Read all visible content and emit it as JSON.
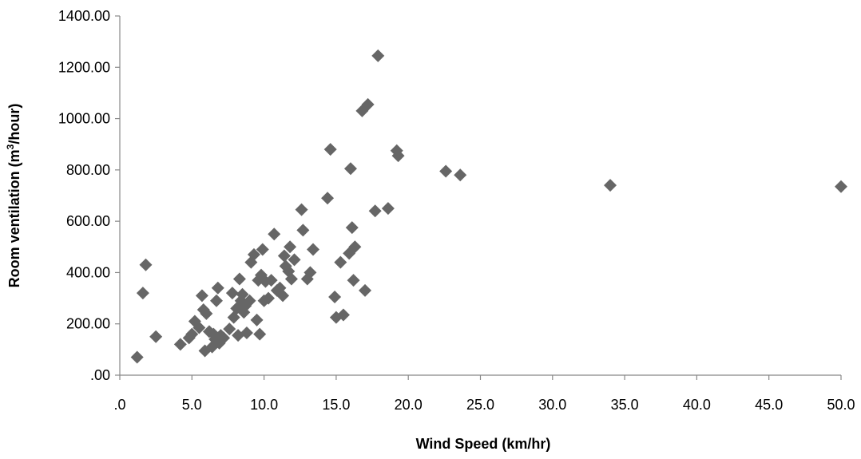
{
  "chart_data": {
    "type": "scatter",
    "title": "",
    "xlabel": "Wind Speed (km/hr)",
    "ylabel_parts": [
      "Room ventilation (m",
      "3",
      "/hour)"
    ],
    "xlim": [
      0,
      50
    ],
    "ylim": [
      0,
      1400
    ],
    "x_ticks": [
      {
        "value": 0,
        "label": ".0"
      },
      {
        "value": 5,
        "label": "5.0"
      },
      {
        "value": 10,
        "label": "10.0"
      },
      {
        "value": 15,
        "label": "15.0"
      },
      {
        "value": 20,
        "label": "20.0"
      },
      {
        "value": 25,
        "label": "25.0"
      },
      {
        "value": 30,
        "label": "30.0"
      },
      {
        "value": 35,
        "label": "35.0"
      },
      {
        "value": 40,
        "label": "40.0"
      },
      {
        "value": 45,
        "label": "45.0"
      },
      {
        "value": 50,
        "label": "50.0"
      }
    ],
    "y_ticks": [
      {
        "value": 0,
        "label": ".00"
      },
      {
        "value": 200,
        "label": "200.00"
      },
      {
        "value": 400,
        "label": "400.00"
      },
      {
        "value": 600,
        "label": "600.00"
      },
      {
        "value": 800,
        "label": "800.00"
      },
      {
        "value": 1000,
        "label": "1000.00"
      },
      {
        "value": 1200,
        "label": "1200.00"
      },
      {
        "value": 1400,
        "label": "1400.00"
      }
    ],
    "grid": false,
    "legend": "none",
    "marker": "diamond",
    "marker_color": "#666666",
    "axis_color": "#888888",
    "text_color": "#000000",
    "points": [
      [
        1.2,
        70
      ],
      [
        1.6,
        320
      ],
      [
        1.8,
        430
      ],
      [
        2.5,
        150
      ],
      [
        4.2,
        120
      ],
      [
        4.8,
        145
      ],
      [
        5.0,
        160
      ],
      [
        5.2,
        210
      ],
      [
        5.5,
        185
      ],
      [
        5.7,
        310
      ],
      [
        5.8,
        255
      ],
      [
        5.9,
        95
      ],
      [
        6.0,
        240
      ],
      [
        6.2,
        170
      ],
      [
        6.4,
        110
      ],
      [
        6.5,
        160
      ],
      [
        6.6,
        140
      ],
      [
        6.7,
        290
      ],
      [
        6.8,
        340
      ],
      [
        6.9,
        125
      ],
      [
        7.0,
        155
      ],
      [
        7.2,
        145
      ],
      [
        7.6,
        180
      ],
      [
        7.8,
        320
      ],
      [
        7.9,
        225
      ],
      [
        8.1,
        260
      ],
      [
        8.2,
        155
      ],
      [
        8.3,
        375
      ],
      [
        8.4,
        290
      ],
      [
        8.5,
        315
      ],
      [
        8.6,
        245
      ],
      [
        8.7,
        270
      ],
      [
        8.8,
        165
      ],
      [
        9.0,
        290
      ],
      [
        9.1,
        440
      ],
      [
        9.3,
        470
      ],
      [
        9.5,
        215
      ],
      [
        9.6,
        370
      ],
      [
        9.7,
        160
      ],
      [
        9.8,
        390
      ],
      [
        9.9,
        490
      ],
      [
        10.0,
        290
      ],
      [
        10.1,
        365
      ],
      [
        10.3,
        300
      ],
      [
        10.5,
        370
      ],
      [
        10.7,
        550
      ],
      [
        10.9,
        330
      ],
      [
        11.1,
        340
      ],
      [
        11.3,
        310
      ],
      [
        11.4,
        465
      ],
      [
        11.5,
        425
      ],
      [
        11.7,
        405
      ],
      [
        11.8,
        500
      ],
      [
        11.9,
        375
      ],
      [
        12.1,
        450
      ],
      [
        12.6,
        645
      ],
      [
        12.7,
        565
      ],
      [
        13.0,
        375
      ],
      [
        13.2,
        400
      ],
      [
        13.4,
        490
      ],
      [
        14.4,
        690
      ],
      [
        14.6,
        880
      ],
      [
        14.9,
        305
      ],
      [
        15.0,
        225
      ],
      [
        15.3,
        440
      ],
      [
        15.5,
        235
      ],
      [
        15.9,
        475
      ],
      [
        16.0,
        805
      ],
      [
        16.1,
        575
      ],
      [
        16.2,
        370
      ],
      [
        16.3,
        500
      ],
      [
        16.8,
        1030
      ],
      [
        17.0,
        330
      ],
      [
        17.2,
        1055
      ],
      [
        17.7,
        640
      ],
      [
        17.9,
        1245
      ],
      [
        18.6,
        650
      ],
      [
        19.2,
        875
      ],
      [
        19.3,
        855
      ],
      [
        22.6,
        795
      ],
      [
        23.6,
        780
      ],
      [
        34.0,
        740
      ],
      [
        50.0,
        735
      ]
    ]
  }
}
